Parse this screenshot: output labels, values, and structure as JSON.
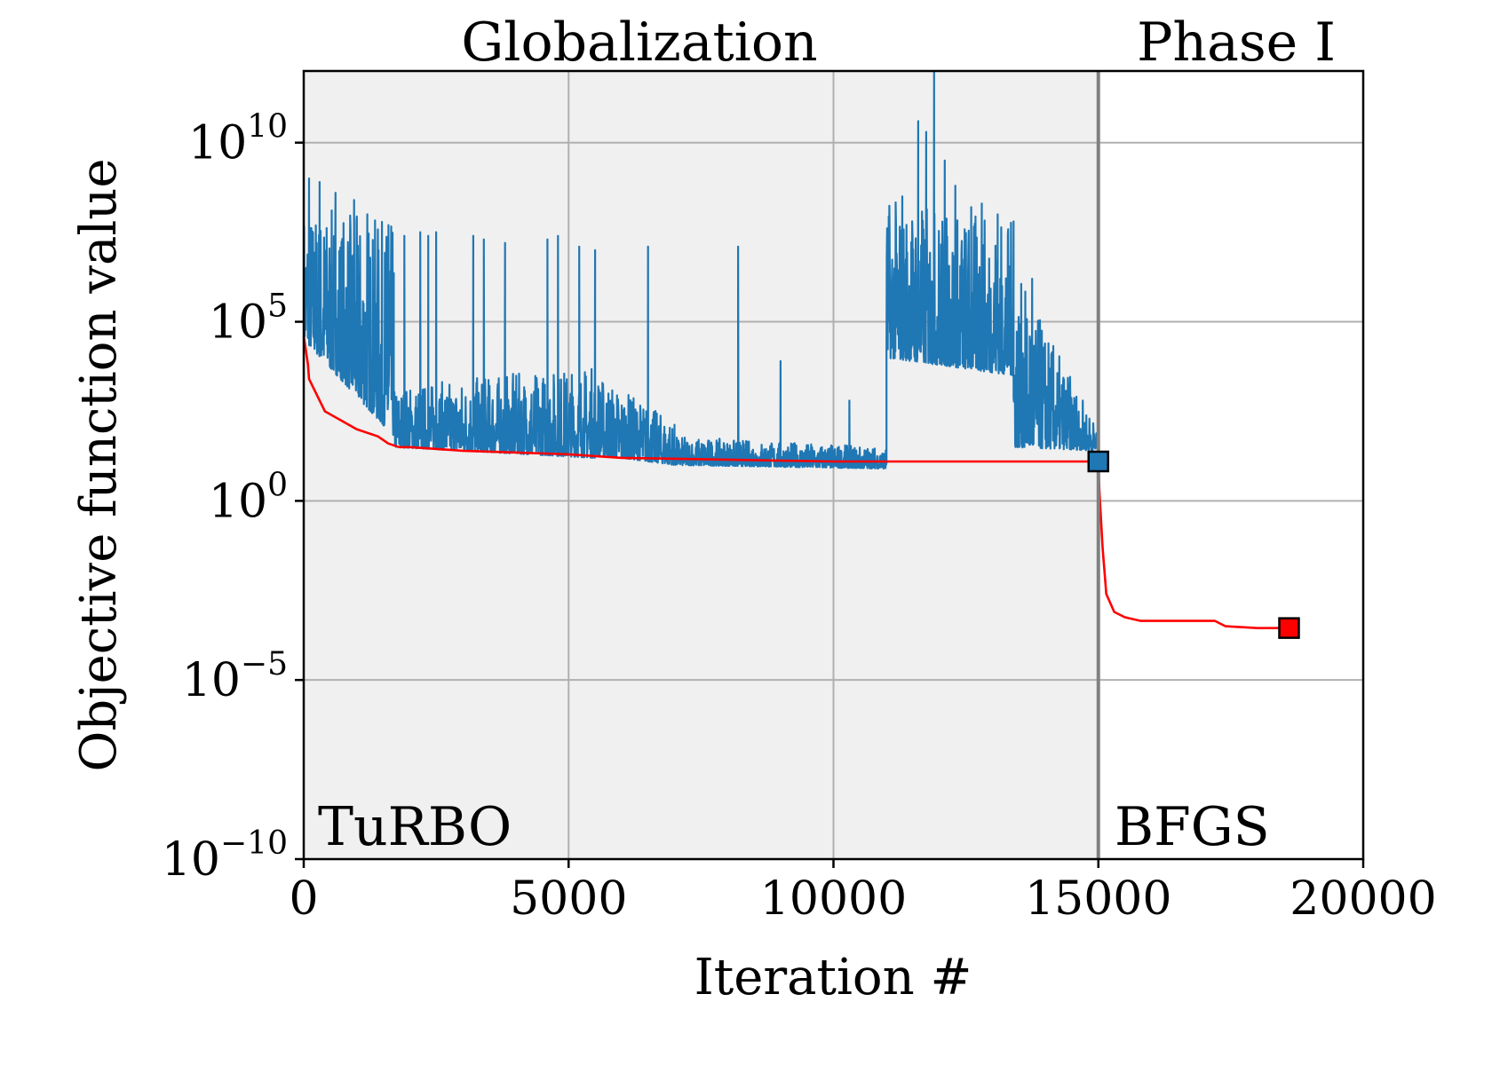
{
  "chart_data": {
    "type": "line",
    "title": "",
    "xlabel": "Iteration #",
    "ylabel": "Objective function value",
    "xlim": [
      0,
      20000
    ],
    "ylim_log10": [
      -10,
      12
    ],
    "yscale": "log",
    "grid": true,
    "x_ticks": [
      0,
      5000,
      10000,
      15000,
      20000
    ],
    "x_tick_labels": [
      "0",
      "5000",
      "10000",
      "15000",
      "20000"
    ],
    "y_ticks_log10": [
      -10,
      -5,
      0,
      5,
      10
    ],
    "y_tick_labels": [
      {
        "base": "10",
        "exp": "−10"
      },
      {
        "base": "10",
        "exp": "−5"
      },
      {
        "base": "10",
        "exp": "0"
      },
      {
        "base": "10",
        "exp": "5"
      },
      {
        "base": "10",
        "exp": "10"
      }
    ],
    "regions": [
      {
        "label": "Globalization",
        "method": "TuRBO",
        "x_range": [
          0,
          15000
        ],
        "shaded": true,
        "color": "#f0f0f0"
      },
      {
        "label": "Phase I",
        "method": "BFGS",
        "x_range": [
          15000,
          20000
        ],
        "shaded": false
      }
    ],
    "phase_boundary_x": 15000,
    "series": [
      {
        "color": "#1f77b4",
        "description": "noisy evaluation trace (log10 envelope)",
        "segments": [
          {
            "x": [
              0,
              1700
            ],
            "low": [
              4.5,
              1.8
            ],
            "high": [
              8.3,
              7.8
            ]
          },
          {
            "x": [
              1700,
              5500
            ],
            "low": [
              1.5,
              1.2
            ],
            "high": [
              3.2,
              3.8
            ]
          },
          {
            "x": [
              5500,
              7000
            ],
            "low": [
              1.3,
              1.0
            ],
            "high": [
              3.6,
              2.2
            ]
          },
          {
            "x": [
              7000,
              11000
            ],
            "low": [
              1.0,
              0.9
            ],
            "high": [
              1.8,
              1.5
            ]
          },
          {
            "x": [
              11000,
              13400
            ],
            "low": [
              4.0,
              3.5
            ],
            "high": [
              8.5,
              7.8
            ]
          },
          {
            "x": [
              13400,
              15000
            ],
            "low": [
              1.5,
              1.4
            ],
            "high": [
              6.5,
              2.0
            ]
          }
        ],
        "spikes": [
          {
            "x": 100,
            "log10": 9.0
          },
          {
            "x": 300,
            "log10": 8.9
          },
          {
            "x": 600,
            "log10": 8.6
          },
          {
            "x": 950,
            "log10": 8.4
          },
          {
            "x": 1200,
            "log10": 8.0
          },
          {
            "x": 1600,
            "log10": 7.7
          },
          {
            "x": 1900,
            "log10": 7.4
          },
          {
            "x": 2200,
            "log10": 7.5
          },
          {
            "x": 2350,
            "log10": 7.4
          },
          {
            "x": 2500,
            "log10": 7.5
          },
          {
            "x": 3200,
            "log10": 7.4
          },
          {
            "x": 3400,
            "log10": 7.3
          },
          {
            "x": 3800,
            "log10": 7.2
          },
          {
            "x": 4600,
            "log10": 7.3
          },
          {
            "x": 4800,
            "log10": 7.4
          },
          {
            "x": 5200,
            "log10": 7.1
          },
          {
            "x": 5500,
            "log10": 7.0
          },
          {
            "x": 6500,
            "log10": 7.1
          },
          {
            "x": 8200,
            "log10": 7.1
          },
          {
            "x": 9000,
            "log10": 3.9
          },
          {
            "x": 10300,
            "log10": 2.8
          },
          {
            "x": 11300,
            "log10": 8.5
          },
          {
            "x": 11600,
            "log10": 10.6
          },
          {
            "x": 11750,
            "log10": 10.3
          },
          {
            "x": 11900,
            "log10": 12.0
          },
          {
            "x": 12100,
            "log10": 9.5
          },
          {
            "x": 12300,
            "log10": 8.8
          },
          {
            "x": 12600,
            "log10": 8.2
          },
          {
            "x": 12800,
            "log10": 8.3
          },
          {
            "x": 13100,
            "log10": 8.0
          },
          {
            "x": 13400,
            "log10": 7.8
          },
          {
            "x": 13750,
            "log10": 6.2
          }
        ]
      },
      {
        "color": "#ff0000",
        "description": "best objective value so far",
        "x": [
          0,
          80,
          100,
          400,
          1000,
          1400,
          1600,
          1800,
          2000,
          3000,
          5000,
          6000,
          8000,
          10000,
          11000,
          15000,
          15020,
          15080,
          15150,
          15300,
          15500,
          15800,
          16500,
          17200,
          17400,
          18000,
          18600
        ],
        "log10": [
          4.6,
          3.8,
          3.4,
          2.5,
          2.0,
          1.8,
          1.6,
          1.5,
          1.5,
          1.4,
          1.3,
          1.2,
          1.15,
          1.1,
          1.1,
          1.1,
          0.3,
          -1.3,
          -2.6,
          -3.1,
          -3.25,
          -3.35,
          -3.35,
          -3.35,
          -3.5,
          -3.55,
          -3.55
        ]
      }
    ],
    "markers": [
      {
        "x": 15000,
        "log10": 1.1,
        "shape": "square",
        "color": "#1f77b4"
      },
      {
        "x": 18600,
        "log10": -3.55,
        "shape": "square",
        "color": "#ff0000"
      }
    ]
  }
}
